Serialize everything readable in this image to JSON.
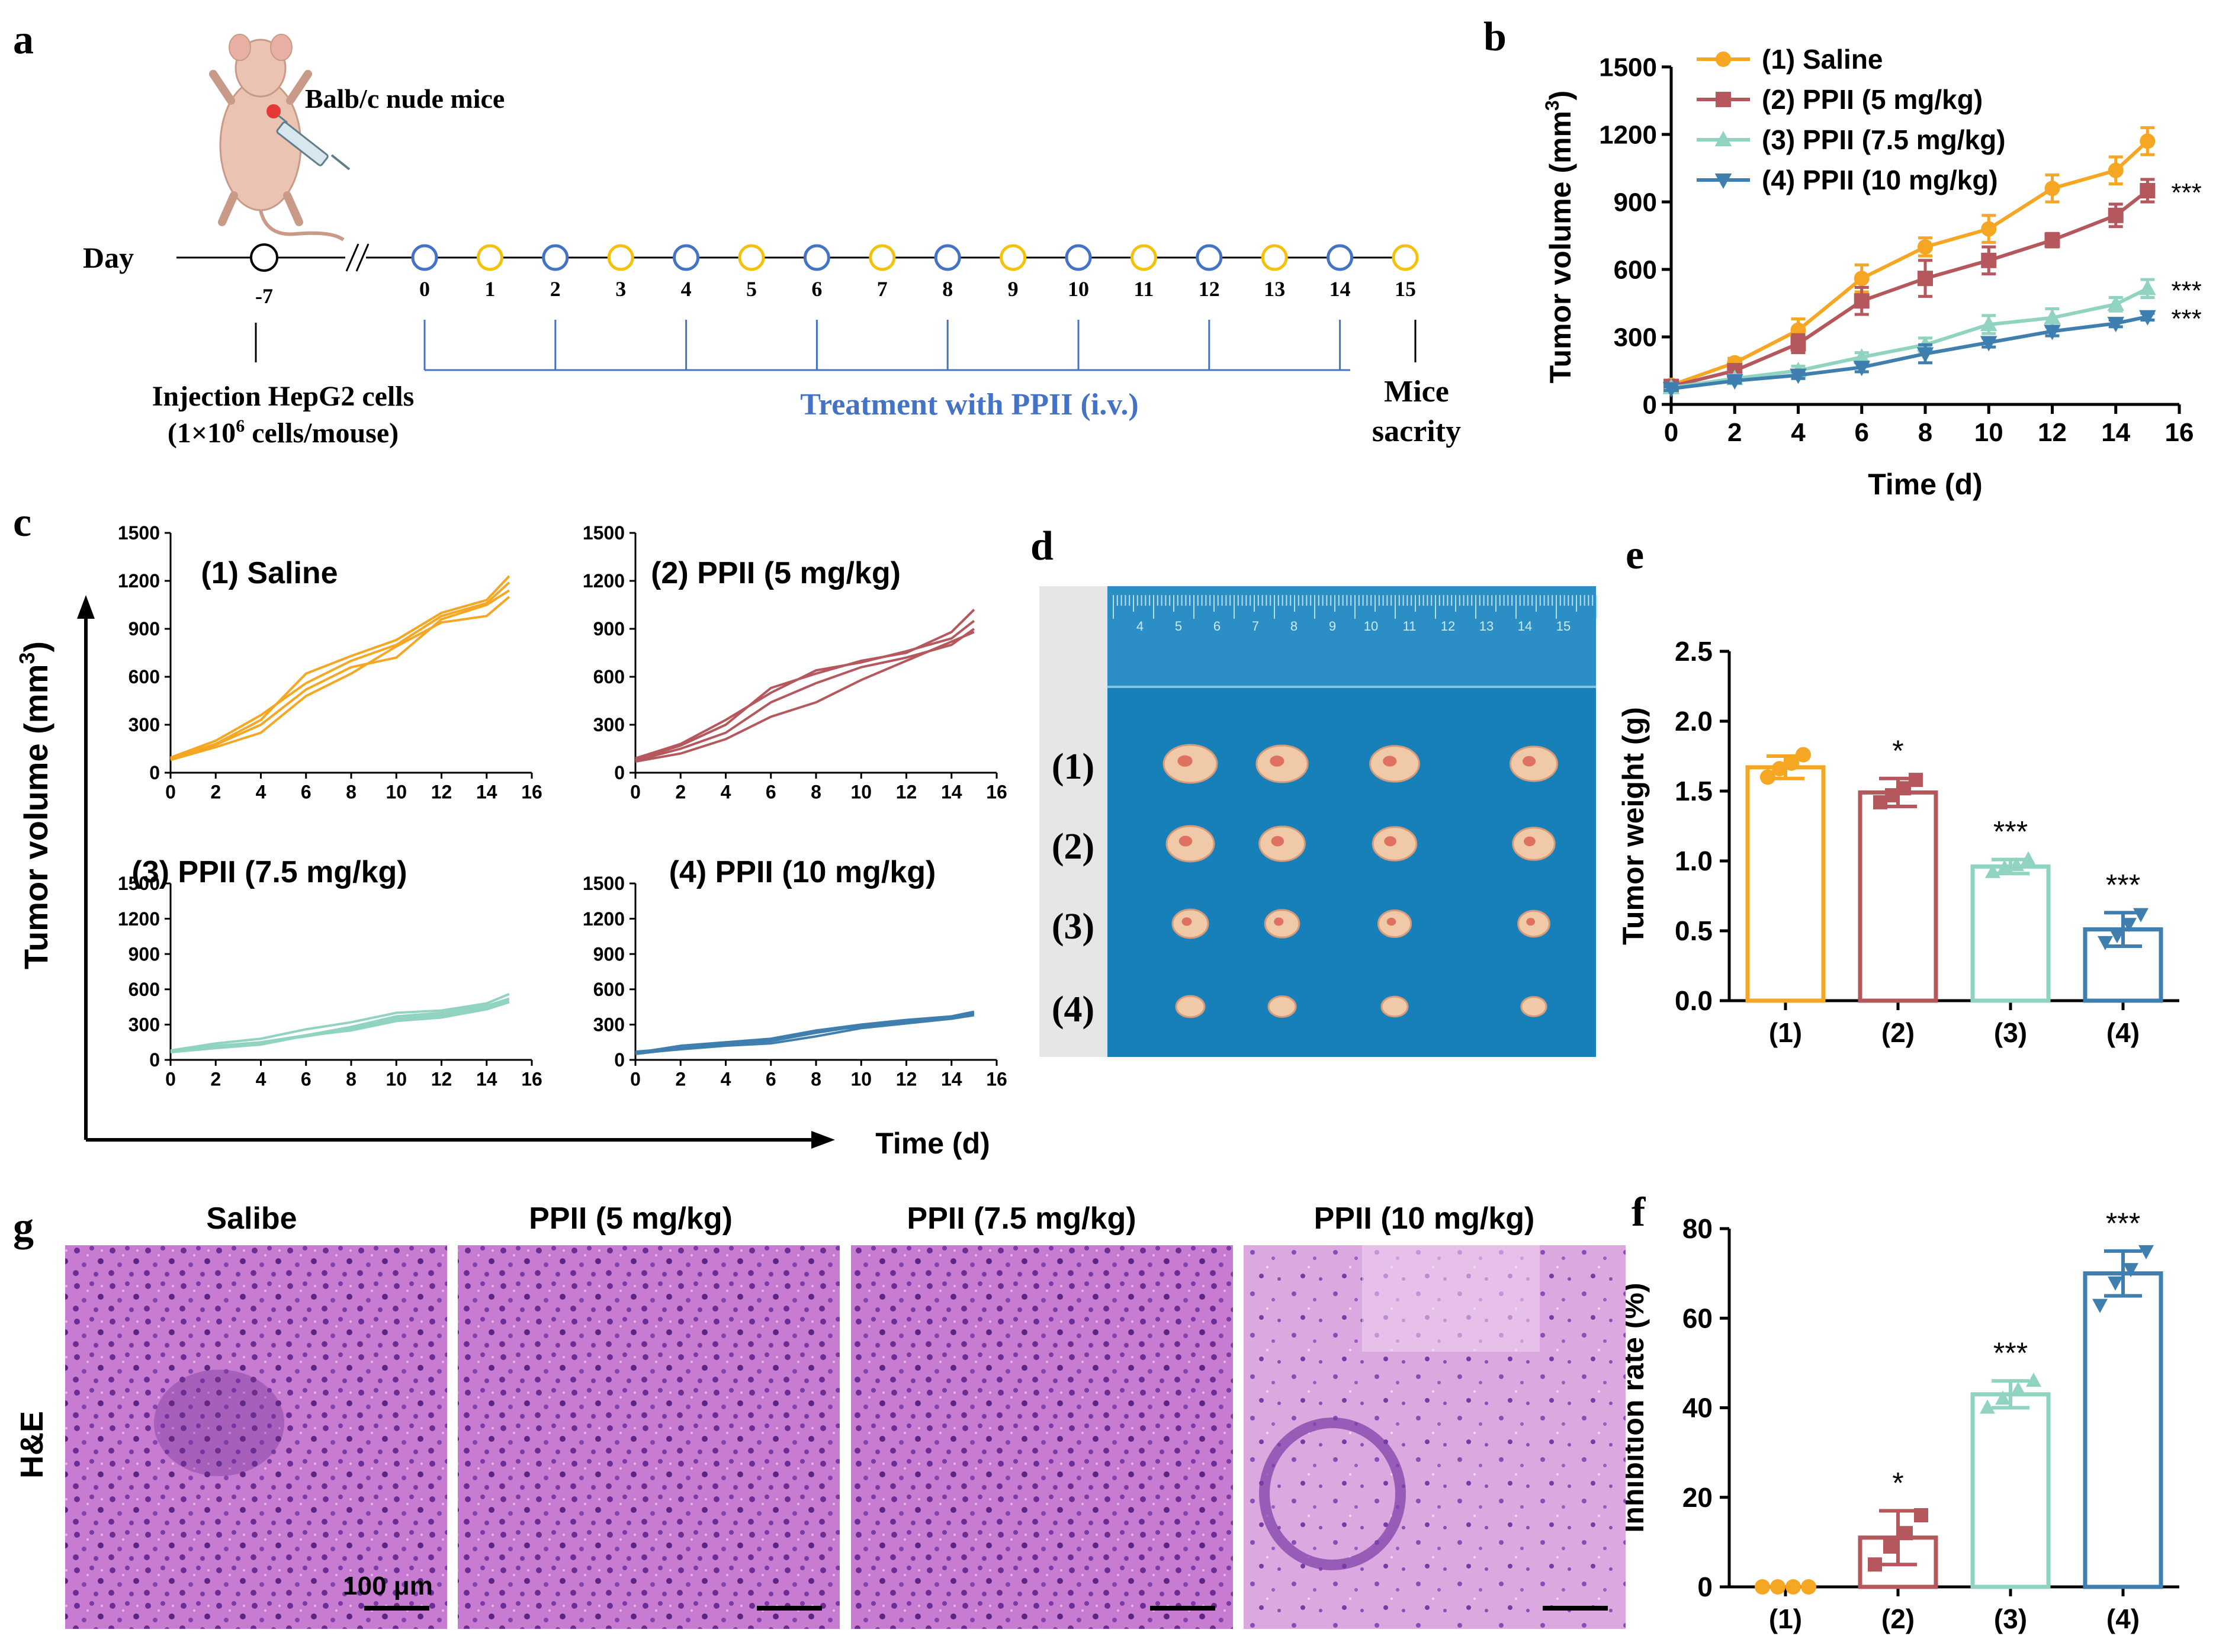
{
  "panel_letters": {
    "a": "a",
    "b": "b",
    "c": "c",
    "d": "d",
    "e": "e",
    "f": "f",
    "g": "g"
  },
  "colors": {
    "saline": "#F5A623",
    "ppii5": "#B5585E",
    "ppii75": "#8FD3C0",
    "ppii10": "#3F7FAF",
    "timeline_blue": "#4472C4",
    "timeline_yellow": "#F4C20D",
    "board": "#1780B8"
  },
  "panel_a": {
    "mouse_label": "Balb/c nude mice",
    "day_label": "Day",
    "start_day": "-7",
    "days": [
      "0",
      "1",
      "2",
      "3",
      "4",
      "5",
      "6",
      "7",
      "8",
      "9",
      "10",
      "11",
      "12",
      "13",
      "14",
      "15"
    ],
    "injection_line1": "Injection HepG2 cells",
    "injection_line2_pre": "(1×10",
    "injection_line2_sup": "6",
    "injection_line2_post": " cells/mouse)",
    "treatment_label": "Treatment  with PPII (i.v.)",
    "end_line1": "Mice",
    "end_line2": "sacrity"
  },
  "panel_d": {
    "row_labels": [
      "(1)",
      "(2)",
      "(3)",
      "(4)"
    ],
    "ruler_numbers": [
      "4",
      "5",
      "6",
      "7",
      "8",
      "9",
      "10",
      "11",
      "12",
      "13",
      "14",
      "15"
    ]
  },
  "panel_g": {
    "titles": [
      "Salibe",
      "PPII (5 mg/kg)",
      "PPII (7.5 mg/kg)",
      "PPII (10 mg/kg)"
    ],
    "row_label": "H&E",
    "scale_label": "100 μm"
  },
  "chart_data": [
    {
      "id": "b",
      "type": "line",
      "xlabel": "Time (d)",
      "ylabel_pre": "Tumor volume (mm",
      "ylabel_sup": "3",
      "ylabel_post": ")",
      "xlim": [
        0,
        16
      ],
      "ylim": [
        0,
        1500
      ],
      "xticks": [
        "0",
        "2",
        "4",
        "6",
        "8",
        "10",
        "12",
        "14",
        "16"
      ],
      "yticks": [
        "0",
        "300",
        "600",
        "900",
        "1200",
        "1500"
      ],
      "x": [
        0,
        2,
        4,
        6,
        8,
        10,
        12,
        14,
        15
      ],
      "series": [
        {
          "name": "(1) Saline",
          "color": "#F5A623",
          "marker": "circle",
          "values": [
            85,
            185,
            330,
            560,
            700,
            780,
            960,
            1040,
            1170
          ],
          "err": [
            10,
            20,
            50,
            60,
            40,
            60,
            60,
            60,
            60
          ],
          "sig": ""
        },
        {
          "name": "(2) PPII (5 mg/kg)",
          "color": "#B5585E",
          "marker": "square",
          "values": [
            80,
            150,
            270,
            460,
            560,
            640,
            730,
            840,
            950
          ],
          "err": [
            10,
            20,
            40,
            60,
            80,
            60,
            30,
            50,
            50
          ],
          "sig": "***"
        },
        {
          "name": "(3) PPII (7.5 mg/kg)",
          "color": "#8FD3C0",
          "marker": "triangle-up",
          "values": [
            75,
            115,
            150,
            210,
            265,
            355,
            385,
            445,
            515
          ],
          "err": [
            10,
            15,
            20,
            20,
            30,
            40,
            40,
            30,
            40
          ],
          "sig": "***"
        },
        {
          "name": "(4) PPII (10 mg/kg)",
          "color": "#3F7FAF",
          "marker": "triangle-down",
          "values": [
            70,
            105,
            130,
            165,
            225,
            275,
            325,
            360,
            390
          ],
          "err": [
            8,
            10,
            15,
            20,
            40,
            20,
            20,
            15,
            15
          ],
          "sig": "***"
        }
      ]
    },
    {
      "id": "c",
      "type": "line",
      "xlabel": "Time (d)",
      "ylabel_pre": "Tumor volume (mm",
      "ylabel_sup": "3",
      "ylabel_post": ")",
      "xlim": [
        0,
        16
      ],
      "ylim": [
        0,
        1500
      ],
      "xticks": [
        "0",
        "2",
        "4",
        "6",
        "8",
        "10",
        "12",
        "14",
        "16"
      ],
      "yticks": [
        "0",
        "300",
        "600",
        "900",
        "1200",
        "1500"
      ],
      "x": [
        0,
        2,
        4,
        6,
        8,
        10,
        12,
        14,
        15
      ],
      "subplots": [
        {
          "title": "(1) Saline",
          "color": "#F5A623",
          "lines": [
            [
              90,
              180,
              330,
              620,
              730,
              830,
              1000,
              1080,
              1230
            ],
            [
              95,
              200,
              360,
              560,
              700,
              800,
              980,
              1060,
              1190
            ],
            [
              85,
              175,
              300,
              520,
              660,
              720,
              960,
              1050,
              1140
            ],
            [
              80,
              160,
              250,
              480,
              620,
              790,
              940,
              980,
              1100
            ]
          ]
        },
        {
          "title": "(2) PPII (5 mg/kg)",
          "color": "#B5585E",
          "lines": [
            [
              80,
              170,
              300,
              530,
              620,
              700,
              750,
              880,
              1020
            ],
            [
              90,
              180,
              330,
              500,
              640,
              690,
              760,
              840,
              950
            ],
            [
              75,
              150,
              250,
              440,
              560,
              660,
              720,
              800,
              900
            ],
            [
              70,
              120,
              210,
              350,
              440,
              580,
              700,
              820,
              880
            ]
          ]
        },
        {
          "title": "(3) PPII (7.5 mg/kg)",
          "color": "#8FD3C0",
          "lines": [
            [
              80,
              140,
              180,
              260,
              320,
              400,
              420,
              480,
              560
            ],
            [
              70,
              120,
              150,
              210,
              280,
              370,
              400,
              460,
              520
            ],
            [
              75,
              110,
              145,
              200,
              260,
              350,
              380,
              440,
              500
            ],
            [
              65,
              100,
              130,
              205,
              250,
              330,
              360,
              430,
              490
            ]
          ]
        },
        {
          "title": "(4) PPII (10 mg/kg)",
          "color": "#3F7FAF",
          "lines": [
            [
              60,
              120,
              150,
              180,
              250,
              300,
              340,
              370,
              410
            ],
            [
              70,
              100,
              130,
              160,
              230,
              290,
              330,
              360,
              400
            ],
            [
              50,
              95,
              140,
              170,
              250,
              280,
              320,
              360,
              390
            ],
            [
              55,
              90,
              120,
              140,
              200,
              270,
              310,
              350,
              380
            ]
          ]
        }
      ]
    },
    {
      "id": "e",
      "type": "bar",
      "ylabel": "Tumor weight (g)",
      "categories": [
        "(1)",
        "(2)",
        "(3)",
        "(4)"
      ],
      "values": [
        1.67,
        1.49,
        0.96,
        0.51
      ],
      "err": [
        0.08,
        0.1,
        0.05,
        0.12
      ],
      "points": [
        [
          1.6,
          1.66,
          1.7,
          1.76
        ],
        [
          1.42,
          1.47,
          1.52,
          1.58
        ],
        [
          0.92,
          0.95,
          0.97,
          1.01
        ],
        [
          0.42,
          0.47,
          0.55,
          0.62
        ]
      ],
      "colors": [
        "#F5A623",
        "#B5585E",
        "#8FD3C0",
        "#3F7FAF"
      ],
      "sig": [
        "",
        "*",
        "***",
        "***"
      ],
      "ylim": [
        0,
        2.5
      ],
      "yticks": [
        "0.0",
        "0.5",
        "1.0",
        "1.5",
        "2.0",
        "2.5"
      ]
    },
    {
      "id": "f",
      "type": "bar",
      "ylabel": "Inhibition rate (%)",
      "categories": [
        "(1)",
        "(2)",
        "(3)",
        "(4)"
      ],
      "values": [
        0,
        11,
        43,
        70
      ],
      "err": [
        0,
        6,
        3,
        5
      ],
      "points": [
        [
          0,
          0,
          0,
          0
        ],
        [
          5,
          9,
          12,
          16
        ],
        [
          40,
          42,
          44,
          46
        ],
        [
          63,
          68,
          71,
          75
        ]
      ],
      "colors": [
        "#F5A623",
        "#B5585E",
        "#8FD3C0",
        "#3F7FAF"
      ],
      "sig": [
        "",
        "*",
        "***",
        "***"
      ],
      "ylim": [
        0,
        80
      ],
      "yticks": [
        "0",
        "20",
        "40",
        "60",
        "80"
      ]
    }
  ]
}
